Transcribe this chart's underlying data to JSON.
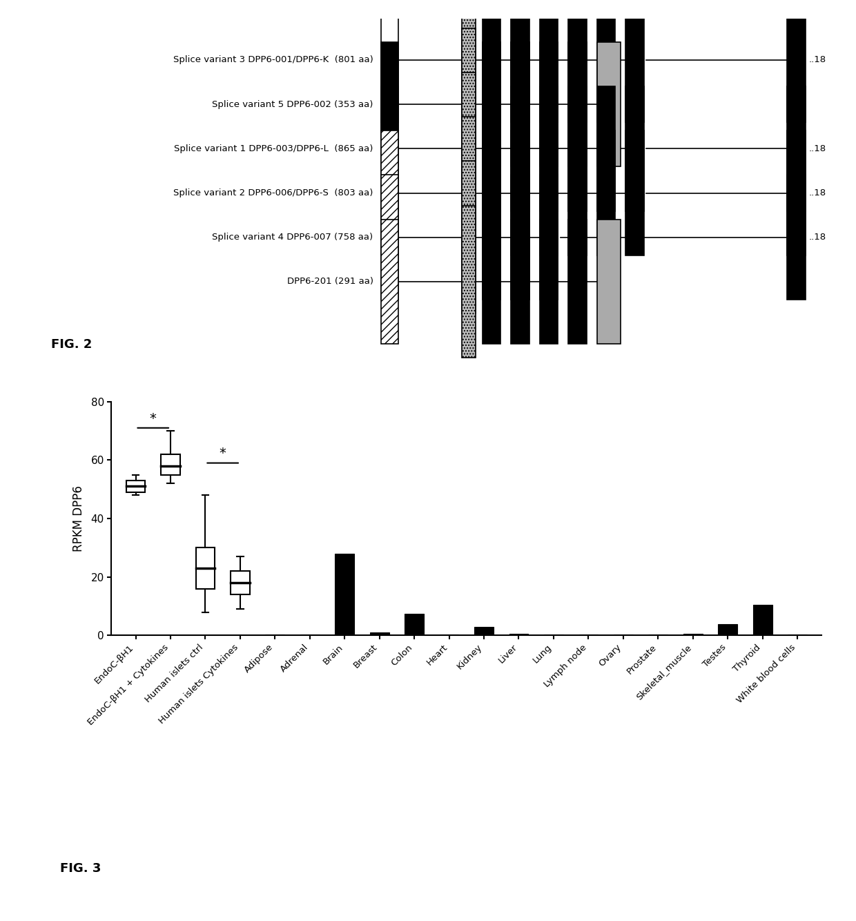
{
  "fig2_variants": [
    {
      "label": "Splice variant 3 DPP6-001/DPP6-K  (801 aa)",
      "row": 0,
      "start_type": "open_box",
      "black_exons_after_td": 6,
      "gray_end": false,
      "line_extends": true
    },
    {
      "label": "Splice variant 5 DPP6-002 (353 aa)",
      "row": 1,
      "start_type": "black_box",
      "black_exons_after_td": 4,
      "gray_end": true,
      "line_extends": false
    },
    {
      "label": "Splice variant 1 DPP6-003/DPP6-L  (865 aa)",
      "row": 2,
      "start_type": "black_box",
      "black_exons_after_td": 6,
      "gray_end": false,
      "line_extends": true
    },
    {
      "label": "Splice variant 2 DPP6-006/DPP6-S  (803 aa)",
      "row": 3,
      "start_type": "hatched_box",
      "black_exons_after_td": 6,
      "gray_end": false,
      "line_extends": true
    },
    {
      "label": "Splice variant 4 DPP6-007 (758 aa)",
      "row": 4,
      "start_type": "hatched_box",
      "black_exons_after_td": 3,
      "gray_end": false,
      "line_extends": true
    },
    {
      "label": "DPP6-201 (291 aa)",
      "row": 5,
      "start_type": "hatched_box",
      "black_exons_after_td": 4,
      "gray_end": true,
      "line_extends": false
    }
  ],
  "fig3_categories": [
    "EndoC-βH1",
    "EndoC-βH1 + Cytokines",
    "Human islets ctrl",
    "Human islets Cytokines",
    "Adipose",
    "Adrenal",
    "Brain",
    "Breast",
    "Colon",
    "Heart",
    "Kidney",
    "Liver",
    "Lung",
    "Lymph node",
    "Ovary",
    "Prostate",
    "Skeletal_muscle",
    "Testes",
    "Thyroid",
    "White blood cells"
  ],
  "fig3_box_data": {
    "EndoC-βH1": {
      "q1": 49,
      "median": 51,
      "q3": 53,
      "whisker_low": 48,
      "whisker_high": 55
    },
    "EndoC-βH1 + Cytokines": {
      "q1": 55,
      "median": 58,
      "q3": 62,
      "whisker_low": 52,
      "whisker_high": 70
    },
    "Human islets ctrl": {
      "q1": 16,
      "median": 23,
      "q3": 30,
      "whisker_low": 8,
      "whisker_high": 48
    },
    "Human islets Cytokines": {
      "q1": 14,
      "median": 18,
      "q3": 22,
      "whisker_low": 9,
      "whisker_high": 27
    }
  },
  "fig3_bar_data": {
    "Adipose": 0.4,
    "Adrenal": 0.4,
    "Brain": 28,
    "Breast": 1.0,
    "Colon": 7.5,
    "Heart": 0.4,
    "Kidney": 3.0,
    "Liver": 0.6,
    "Lung": 0.4,
    "Lymph node": 0.4,
    "Ovary": 0.4,
    "Prostate": 0.4,
    "Skeletal_muscle": 0.6,
    "Testes": 4.0,
    "Thyroid": 10.5,
    "White blood cells": 0.4
  },
  "fig3_ylabel": "RPKM DPP6",
  "fig3_ylim": [
    0,
    80
  ],
  "fig3_yticks": [
    0,
    20,
    40,
    60,
    80
  ],
  "background_color": "#ffffff",
  "text_color": "#000000",
  "bar_color": "#000000",
  "fig2_label": "FIG. 2",
  "fig3_label": "FIG. 3"
}
